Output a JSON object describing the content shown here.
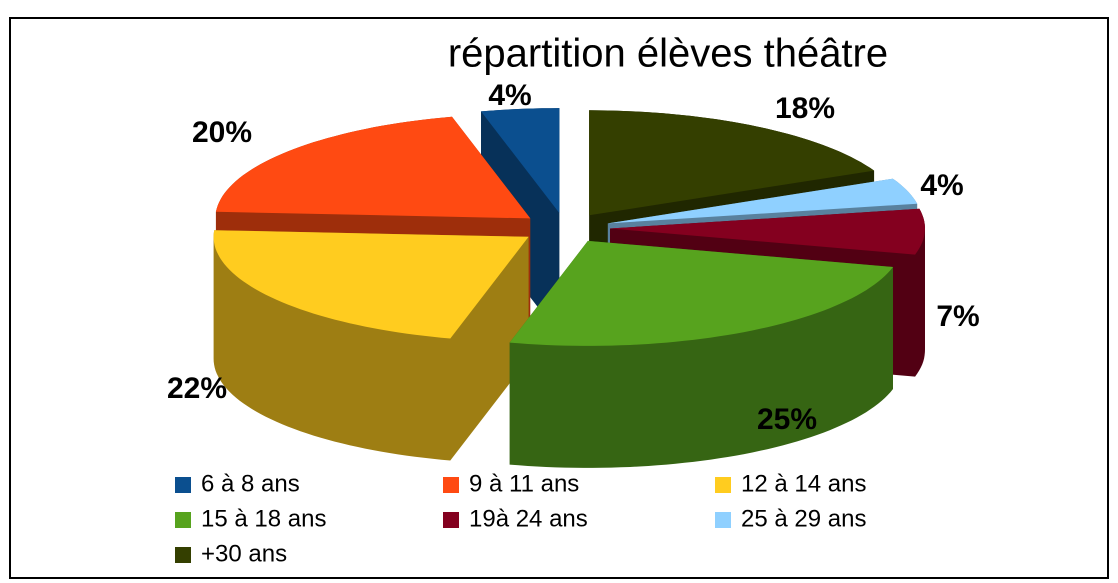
{
  "chart_data": {
    "type": "pie",
    "title": "répartition élèves théâtre",
    "categories": [
      "6 à 8 ans",
      "9 à 11 ans",
      "12 à 14 ans",
      "15 à 18 ans",
      "19à 24 ans",
      "25 à 29 ans",
      "+30 ans"
    ],
    "values": [
      4,
      20,
      22,
      25,
      7,
      4,
      18
    ],
    "value_labels": [
      "4%",
      "20%",
      "22%",
      "25%",
      "7%",
      "4%",
      "18%"
    ],
    "colors": [
      "#0b4f8f",
      "#ff4a12",
      "#ffcc1f",
      "#57a31e",
      "#84001f",
      "#8fd0ff",
      "#343f00"
    ]
  }
}
